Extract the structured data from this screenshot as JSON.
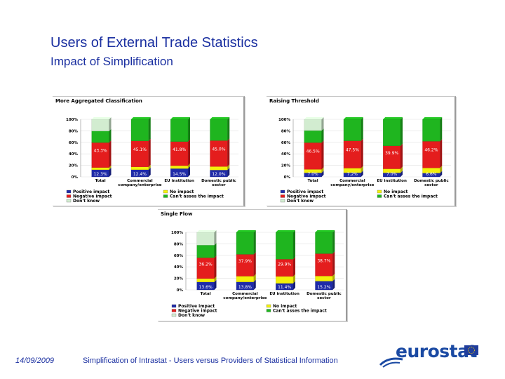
{
  "slide": {
    "title": "Users of External Trade Statistics",
    "subtitle": "Impact of Simplification",
    "footer_date": "14/09/2009",
    "footer_text": "Simplification of Intrastat - Users versus Providers of Statistical Information",
    "logo_text": "eurostat"
  },
  "colors": {
    "title": "#1a2fa0",
    "positive_impact": "#1f2ba8",
    "no_impact": "#f4f10a",
    "negative_impact": "#e41d1d",
    "cant_assess": "#1fb51f",
    "dont_know": "#d2ecd0"
  },
  "legend_labels": [
    {
      "key": "positive_impact",
      "label": "Positive impact"
    },
    {
      "key": "no_impact",
      "label": "No impact"
    },
    {
      "key": "negative_impact",
      "label": "Negative impact"
    },
    {
      "key": "cant_assess",
      "label": "Can't asses the impact"
    },
    {
      "key": "dont_know",
      "label": "Don't know"
    }
  ],
  "chart_data": [
    {
      "type": "bar",
      "stacked": true,
      "percent": true,
      "title": "More Aggregated Classification",
      "categories": [
        "Total",
        "Commercial company/enterprise",
        "EU institution",
        "Domestic public sector"
      ],
      "category_labels": [
        "Total",
        "Commercial\ncompany/enterprise",
        "EU institution",
        "Domestic public\nsector"
      ],
      "y_ticks": [
        "0%",
        "20%",
        "40%",
        "60%",
        "80%",
        "100%"
      ],
      "ylim": [
        0,
        100
      ],
      "series": [
        {
          "key": "positive_impact",
          "name": "Positive impact",
          "values": [
            12.3,
            12.4,
            14.5,
            12.0
          ],
          "labels": [
            "12.3%",
            "12.4%",
            "14.5%",
            "12.0%"
          ]
        },
        {
          "key": "no_impact",
          "name": "No impact",
          "values": [
            4,
            5,
            5,
            6
          ],
          "labels": [
            "",
            "",
            "",
            ""
          ]
        },
        {
          "key": "negative_impact",
          "name": "Negative impact",
          "values": [
            43.3,
            45.1,
            41.8,
            45.0
          ],
          "labels": [
            "43.3%",
            "45.1%",
            "41.8%",
            "45.0%"
          ]
        },
        {
          "key": "cant_assess",
          "name": "Can't asses the impact",
          "values": [
            20,
            37.5,
            38.7,
            37
          ],
          "labels": [
            "",
            "",
            "",
            ""
          ]
        },
        {
          "key": "dont_know",
          "name": "Don't know",
          "values": [
            20.4,
            0,
            0,
            0
          ],
          "labels": [
            "",
            "",
            "",
            ""
          ]
        }
      ],
      "legend": "bottom"
    },
    {
      "type": "bar",
      "stacked": true,
      "percent": true,
      "title": "Raising Threshold",
      "categories": [
        "Total",
        "Commercial company/enterprise",
        "EU institution",
        "Domestic public sector"
      ],
      "category_labels": [
        "Total",
        "Commercial\ncompany/enterprise",
        "EU institution",
        "Domestic public\nsector"
      ],
      "y_ticks": [
        "0%",
        "20%",
        "40%",
        "60%",
        "80%",
        "100%"
      ],
      "ylim": [
        0,
        100
      ],
      "series": [
        {
          "key": "positive_impact",
          "name": "Positive impact",
          "values": [
            7.0,
            7.2,
            7.0,
            6.6
          ],
          "labels": [
            "7.0%",
            "7.2%",
            "7.0%",
            "6.6%"
          ]
        },
        {
          "key": "no_impact",
          "name": "No impact",
          "values": [
            6,
            8,
            7,
            9
          ],
          "labels": [
            "",
            "",
            "",
            ""
          ]
        },
        {
          "key": "negative_impact",
          "name": "Negative impact",
          "values": [
            46.5,
            47.5,
            39.9,
            46.2
          ],
          "labels": [
            "46.5%",
            "47.5%",
            "39.9%",
            "46.2%"
          ]
        },
        {
          "key": "cant_assess",
          "name": "Can't asses the impact",
          "values": [
            21,
            37.3,
            46.1,
            38.2
          ],
          "labels": [
            "",
            "",
            "",
            ""
          ]
        },
        {
          "key": "dont_know",
          "name": "Don't know",
          "values": [
            19.5,
            0,
            0,
            0
          ],
          "labels": [
            "",
            "",
            "",
            ""
          ]
        }
      ],
      "legend": "bottom"
    },
    {
      "type": "bar",
      "stacked": true,
      "percent": true,
      "title": "Single Flow",
      "categories": [
        "Total",
        "Commercial company/enterprise",
        "EU institution",
        "Domestic public sector"
      ],
      "category_labels": [
        "Total",
        "Commercial\ncompany/enterprise",
        "EU institution",
        "Domestic public\nsector"
      ],
      "y_ticks": [
        "0%",
        "20%",
        "40%",
        "60%",
        "80%",
        "100%"
      ],
      "ylim": [
        0,
        100
      ],
      "series": [
        {
          "key": "positive_impact",
          "name": "Positive impact",
          "values": [
            13.6,
            13.8,
            11.4,
            15.2
          ],
          "labels": [
            "13.6%",
            "13.8%",
            "11.4%",
            "15.2%"
          ]
        },
        {
          "key": "no_impact",
          "name": "No impact",
          "values": [
            6,
            10,
            12,
            9
          ],
          "labels": [
            "",
            "",
            "",
            ""
          ]
        },
        {
          "key": "negative_impact",
          "name": "Negative impact",
          "values": [
            36.2,
            37.9,
            29.9,
            38.7
          ],
          "labels": [
            "36.2%",
            "37.9%",
            "29.9%",
            "38.7%"
          ]
        },
        {
          "key": "cant_assess",
          "name": "Can't asses the impact",
          "values": [
            22,
            38.3,
            46.7,
            37.1
          ],
          "labels": [
            "",
            "",
            "",
            ""
          ]
        },
        {
          "key": "dont_know",
          "name": "Don't know",
          "values": [
            22.2,
            0,
            0,
            0
          ],
          "labels": [
            "",
            "",
            "",
            ""
          ]
        }
      ],
      "legend": "bottom"
    }
  ]
}
